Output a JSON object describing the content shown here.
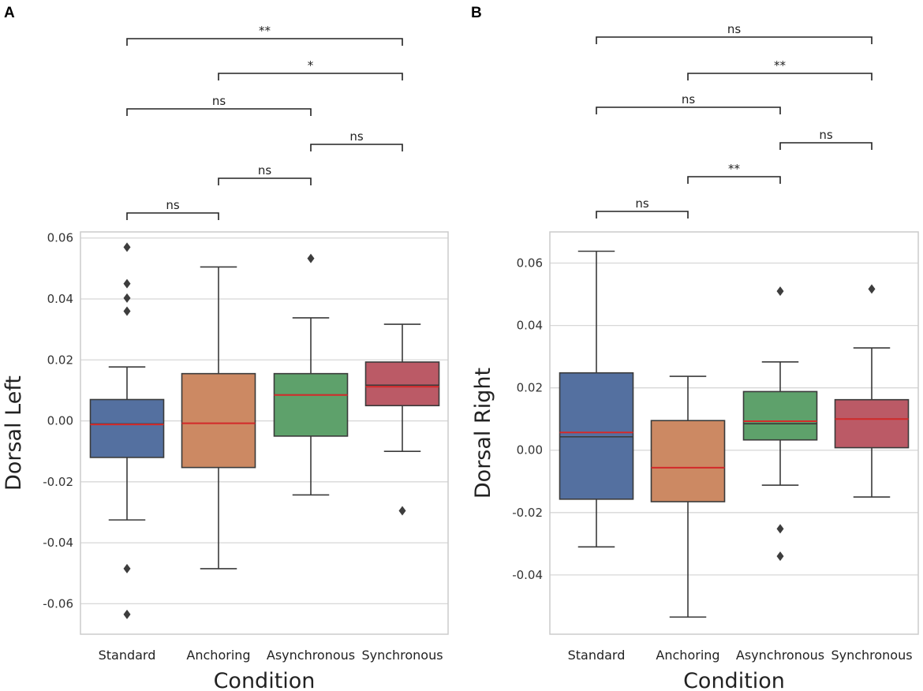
{
  "colors": {
    "Standard": "#5470a0",
    "Anchoring": "#cc8963",
    "Asynchronous": "#5ea16b",
    "Synchronous": "#bb5a66",
    "mean_line": "#d42a2a",
    "whisker": "#3a3a3a",
    "grid": "#d7d7d7",
    "frame": "#cccccc"
  },
  "chart_data": [
    {
      "type": "box",
      "panel": "A",
      "xlabel": "Condition",
      "ylabel": "Dorsal Left",
      "categories": [
        "Standard",
        "Anchoring",
        "Asynchronous",
        "Synchronous"
      ],
      "ylim": [
        -0.07,
        0.062
      ],
      "yticks": [
        -0.06,
        -0.04,
        -0.02,
        0.0,
        0.02,
        0.04,
        0.06
      ],
      "ytick_labels": [
        "-0.06",
        "-0.04",
        "-0.02",
        "0.00",
        "0.02",
        "0.04",
        "0.06"
      ],
      "grid": true,
      "boxes": [
        {
          "name": "Standard",
          "whislo": -0.0325,
          "q1": -0.012,
          "med": -0.001,
          "mean": -0.0012,
          "q3": 0.007,
          "whishi": 0.0177,
          "fliers": [
            0.057,
            0.045,
            0.0403,
            0.036,
            -0.0485,
            -0.0635
          ]
        },
        {
          "name": "Anchoring",
          "whislo": -0.0485,
          "q1": -0.0153,
          "med": -0.0008,
          "mean": -0.0008,
          "q3": 0.0155,
          "whishi": 0.0505,
          "fliers": []
        },
        {
          "name": "Asynchronous",
          "whislo": -0.0243,
          "q1": -0.005,
          "med": 0.0085,
          "mean": 0.0085,
          "q3": 0.0155,
          "whishi": 0.0338,
          "fliers": [
            0.0533
          ]
        },
        {
          "name": "Synchronous",
          "whislo": -0.01,
          "q1": 0.005,
          "med": 0.0117,
          "mean": 0.0112,
          "q3": 0.0193,
          "whishi": 0.0317,
          "fliers": [
            -0.0295
          ]
        }
      ],
      "significance": [
        {
          "from": "Standard",
          "to": "Anchoring",
          "label": "ns"
        },
        {
          "from": "Anchoring",
          "to": "Asynchronous",
          "label": "ns"
        },
        {
          "from": "Asynchronous",
          "to": "Synchronous",
          "label": "ns"
        },
        {
          "from": "Standard",
          "to": "Asynchronous",
          "label": "ns"
        },
        {
          "from": "Anchoring",
          "to": "Synchronous",
          "label": "*"
        },
        {
          "from": "Standard",
          "to": "Synchronous",
          "label": "**"
        }
      ]
    },
    {
      "type": "box",
      "panel": "B",
      "xlabel": "Condition",
      "ylabel": "Dorsal Right",
      "categories": [
        "Standard",
        "Anchoring",
        "Asynchronous",
        "Synchronous"
      ],
      "ylim": [
        -0.059,
        0.07
      ],
      "yticks": [
        -0.04,
        -0.02,
        0.0,
        0.02,
        0.04,
        0.06
      ],
      "ytick_labels": [
        "-0.04",
        "-0.02",
        "0.00",
        "0.02",
        "0.04",
        "0.06"
      ],
      "grid": true,
      "boxes": [
        {
          "name": "Standard",
          "whislo": -0.031,
          "q1": -0.0157,
          "med": 0.0043,
          "mean": 0.0057,
          "q3": 0.0248,
          "whishi": 0.0638,
          "fliers": []
        },
        {
          "name": "Anchoring",
          "whislo": -0.0535,
          "q1": -0.0165,
          "med": -0.0056,
          "mean": -0.0056,
          "q3": 0.0095,
          "whishi": 0.0237,
          "fliers": []
        },
        {
          "name": "Asynchronous",
          "whislo": -0.0112,
          "q1": 0.0033,
          "med": 0.0085,
          "mean": 0.0093,
          "q3": 0.0188,
          "whishi": 0.0283,
          "fliers": [
            0.051,
            -0.0252,
            -0.034
          ]
        },
        {
          "name": "Synchronous",
          "whislo": -0.015,
          "q1": 0.0008,
          "med": 0.01,
          "mean": 0.01,
          "q3": 0.0162,
          "whishi": 0.0328,
          "fliers": [
            0.0517
          ]
        }
      ],
      "significance": [
        {
          "from": "Standard",
          "to": "Anchoring",
          "label": "ns"
        },
        {
          "from": "Anchoring",
          "to": "Asynchronous",
          "label": "**"
        },
        {
          "from": "Asynchronous",
          "to": "Synchronous",
          "label": "ns"
        },
        {
          "from": "Standard",
          "to": "Asynchronous",
          "label": "ns"
        },
        {
          "from": "Anchoring",
          "to": "Synchronous",
          "label": "**"
        },
        {
          "from": "Standard",
          "to": "Synchronous",
          "label": "ns"
        }
      ]
    }
  ]
}
